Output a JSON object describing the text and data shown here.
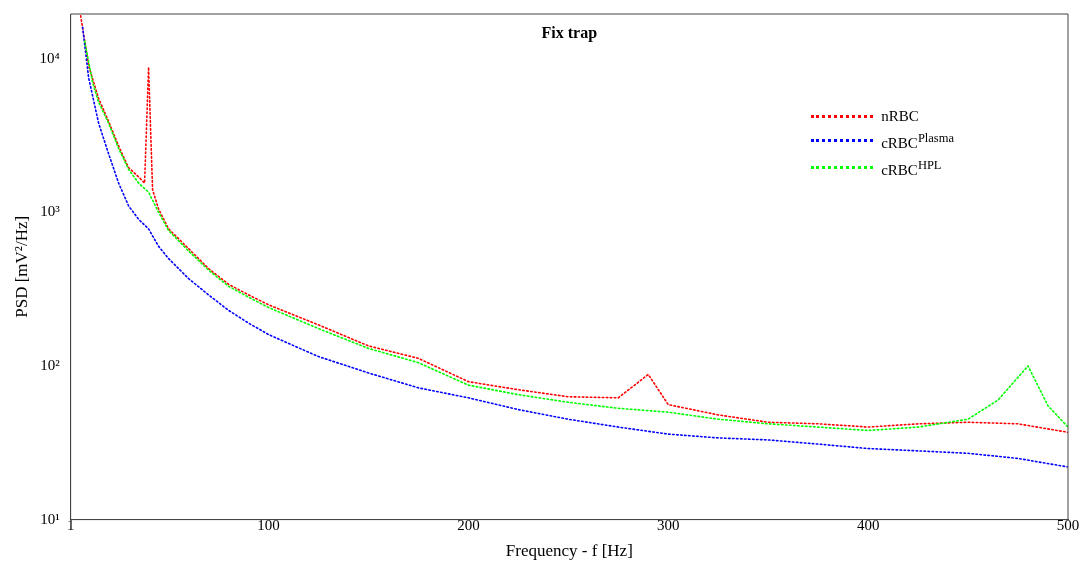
{
  "chart_data": {
    "type": "line",
    "title": "Fix trap",
    "xlabel": "Frequency - f [Hz]",
    "ylabel": "PSD [mV²/Hz]",
    "log": "y",
    "grid": false,
    "legend": "top right",
    "marker": "none",
    "line_style": "dotted",
    "xlim": [
      1,
      500
    ],
    "xticks": [
      1,
      100,
      200,
      300,
      400,
      500
    ],
    "ylim": [
      10,
      19500
    ],
    "yticks": [
      {
        "value": 10,
        "label": "10¹"
      },
      {
        "value": 100,
        "label": "10²"
      },
      {
        "value": 1000,
        "label": "10³"
      },
      {
        "value": 10000,
        "label": "10⁴"
      }
    ],
    "series": [
      {
        "name": "nRBC",
        "color": "#ff0000",
        "x": [
          6,
          10,
          15,
          20,
          25,
          30,
          35,
          38,
          40,
          42,
          45,
          50,
          60,
          70,
          80,
          90,
          100,
          125,
          150,
          175,
          200,
          225,
          250,
          275,
          290,
          300,
          325,
          350,
          375,
          400,
          425,
          450,
          475,
          500
        ],
        "values": [
          19000,
          9000,
          5500,
          3900,
          2700,
          1950,
          1700,
          1550,
          8800,
          1400,
          1050,
          780,
          580,
          430,
          340,
          290,
          250,
          185,
          135,
          112,
          79,
          70,
          63,
          62,
          88,
          56,
          48,
          43,
          42,
          40,
          42,
          43,
          42,
          37
        ]
      },
      {
        "name": "cRBC$^{Plasma}$",
        "color": "#0000ff",
        "x": [
          7,
          10,
          15,
          20,
          25,
          30,
          35,
          40,
          45,
          50,
          60,
          70,
          80,
          90,
          100,
          125,
          150,
          175,
          200,
          225,
          250,
          275,
          300,
          325,
          350,
          375,
          400,
          425,
          450,
          475,
          500
        ],
        "values": [
          16000,
          7500,
          3800,
          2400,
          1550,
          1100,
          900,
          780,
          600,
          500,
          370,
          290,
          230,
          190,
          160,
          115,
          90,
          72,
          62,
          52,
          45,
          40,
          36,
          34,
          33,
          31,
          29,
          28,
          27,
          25,
          22
        ]
      },
      {
        "name": "cRBC$^{HPL}$",
        "color": "#00ff00",
        "x": [
          8,
          12,
          15,
          20,
          25,
          30,
          35,
          40,
          45,
          50,
          60,
          70,
          80,
          90,
          100,
          125,
          150,
          175,
          200,
          225,
          250,
          275,
          300,
          325,
          350,
          375,
          400,
          425,
          450,
          465,
          480,
          490,
          500
        ],
        "values": [
          13000,
          7000,
          5200,
          3800,
          2600,
          1900,
          1550,
          1350,
          1000,
          760,
          560,
          420,
          330,
          280,
          240,
          175,
          130,
          105,
          75,
          65,
          58,
          53,
          50,
          45,
          42,
          40,
          38,
          40,
          45,
          60,
          100,
          55,
          40
        ]
      }
    ]
  }
}
